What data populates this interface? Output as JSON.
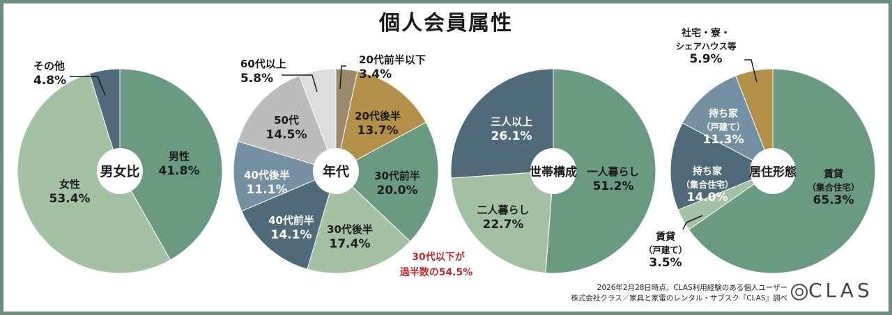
{
  "title": "個人会員属性",
  "footer": {
    "line1": "2026年2月28日時点、CLAS利用経験のある個人ユーザー",
    "line2": "株式会社クラス／家具と家電のレンタル・サブスク『CLAS』調べ"
  },
  "logo": {
    "text": "CLAS"
  },
  "note": {
    "line1": "30代以下が",
    "line2": "過半数の54.5%",
    "color": "#c0282d"
  },
  "chart_data": [
    {
      "type": "pie",
      "title": "男女比",
      "slices": [
        {
          "label": [
            "男性"
          ],
          "value": 41.8,
          "value_text": "41.8%",
          "color": "#6a9a82",
          "text_color": "#1a1a1a"
        },
        {
          "label": [
            "女性"
          ],
          "value": 53.4,
          "value_text": "53.4%",
          "color": "#a3c2a3",
          "text_color": "#1a1a1a"
        },
        {
          "label": [
            "その他"
          ],
          "value": 4.8,
          "value_text": "4.8%",
          "color": "#4f6a78",
          "text_color": "#1a1a1a"
        }
      ]
    },
    {
      "type": "pie",
      "title": "年代",
      "slices": [
        {
          "label": [
            "20代前半以下"
          ],
          "value": 3.4,
          "value_text": "3.4%",
          "color": "#9a8a6a",
          "text_color": "#1a1a1a"
        },
        {
          "label": [
            "20代後半"
          ],
          "value": 13.7,
          "value_text": "13.7%",
          "color": "#b39048",
          "text_color": "#1a1a1a"
        },
        {
          "label": [
            "30代前半"
          ],
          "value": 20.0,
          "value_text": "20.0%",
          "color": "#6a9a82",
          "text_color": "#1a1a1a"
        },
        {
          "label": [
            "30代後半"
          ],
          "value": 17.4,
          "value_text": "17.4%",
          "color": "#a3c2a3",
          "text_color": "#1a1a1a"
        },
        {
          "label": [
            "40代前半"
          ],
          "value": 14.1,
          "value_text": "14.1%",
          "color": "#4f6a78",
          "text_color": "#ffffff"
        },
        {
          "label": [
            "40代後半"
          ],
          "value": 11.1,
          "value_text": "11.1%",
          "color": "#7391a3",
          "text_color": "#ffffff"
        },
        {
          "label": [
            "50代"
          ],
          "value": 14.5,
          "value_text": "14.5%",
          "color": "#bcbcbc",
          "text_color": "#1a1a1a"
        },
        {
          "label": [
            "60代以上"
          ],
          "value": 5.8,
          "value_text": "5.8%",
          "color": "#dcdcdc",
          "text_color": "#1a1a1a"
        }
      ]
    },
    {
      "type": "pie",
      "title": "世帯構成",
      "slices": [
        {
          "label": [
            "一人暮らし"
          ],
          "value": 51.2,
          "value_text": "51.2%",
          "color": "#6a9a82",
          "text_color": "#1a1a1a"
        },
        {
          "label": [
            "二人暮らし"
          ],
          "value": 22.7,
          "value_text": "22.7%",
          "color": "#a3c2a3",
          "text_color": "#1a1a1a"
        },
        {
          "label": [
            "三人以上"
          ],
          "value": 26.1,
          "value_text": "26.1%",
          "color": "#4f6a78",
          "text_color": "#ffffff"
        }
      ]
    },
    {
      "type": "pie",
      "title": "居住形態",
      "slices": [
        {
          "label": [
            "賃貸",
            "（集合住宅）"
          ],
          "value": 65.3,
          "value_text": "65.3%",
          "color": "#6a9a82",
          "text_color": "#1a1a1a"
        },
        {
          "label": [
            "賃貸",
            "（戸建て）"
          ],
          "value": 3.5,
          "value_text": "3.5%",
          "color": "#a3c2a3",
          "text_color": "#1a1a1a"
        },
        {
          "label": [
            "持ち家",
            "（集合住宅）"
          ],
          "value": 14.0,
          "value_text": "14.0%",
          "color": "#4f6a78",
          "text_color": "#ffffff"
        },
        {
          "label": [
            "持ち家",
            "（戸建て）"
          ],
          "value": 11.3,
          "value_text": "11.3%",
          "color": "#7391a3",
          "text_color": "#ffffff"
        },
        {
          "label": [
            "社宅・寮・",
            "シェアハウス等"
          ],
          "value": 5.9,
          "value_text": "5.9%",
          "color": "#b39048",
          "text_color": "#1a1a1a"
        }
      ]
    }
  ]
}
